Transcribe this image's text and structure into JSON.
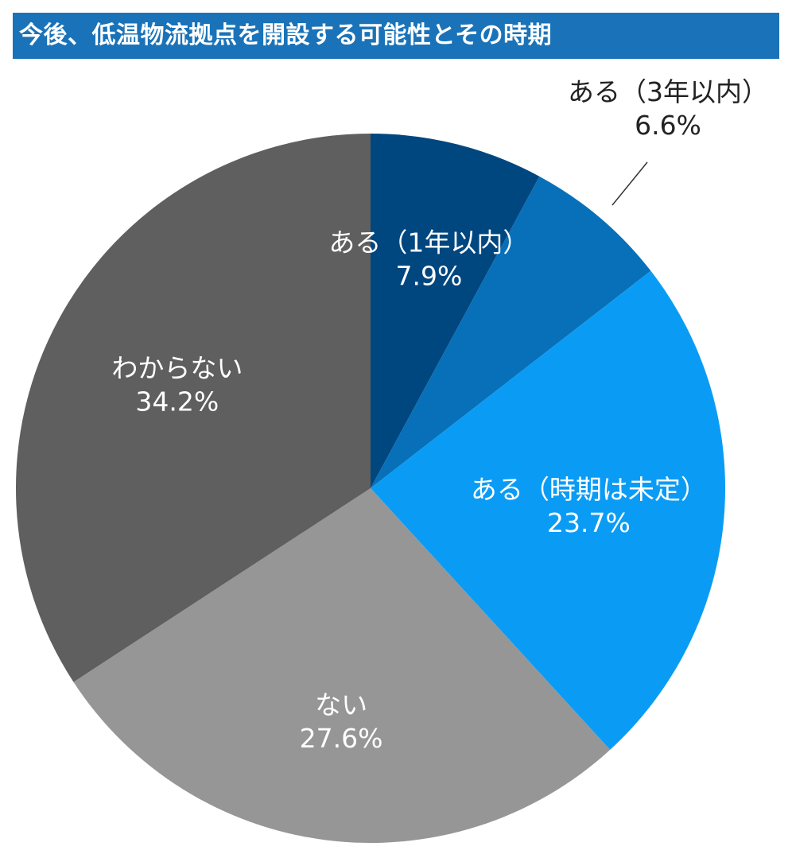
{
  "chart_data": {
    "type": "pie",
    "title": "今後、低温物流拠点を開設する可能性とその時期",
    "slices": [
      {
        "label": "ある（1年以内）",
        "value": 7.9,
        "value_label": "7.9%",
        "color": "#00467f",
        "text_color": "#ffffff"
      },
      {
        "label": "ある（3年以内）",
        "value": 6.6,
        "value_label": "6.6%",
        "color": "#0870b8",
        "text_color": "#222222"
      },
      {
        "label": "ある（時期は未定）",
        "value": 23.7,
        "value_label": "23.7%",
        "color": "#0a9cf5",
        "text_color": "#ffffff"
      },
      {
        "label": "ない",
        "value": 27.6,
        "value_label": "27.6%",
        "color": "#969696",
        "text_color": "#ffffff"
      },
      {
        "label": "わからない",
        "value": 34.2,
        "value_label": "34.2%",
        "color": "#5f5f5f",
        "text_color": "#ffffff"
      }
    ],
    "start_angle": "12 o'clock",
    "direction": "clockwise",
    "legend": "none"
  }
}
